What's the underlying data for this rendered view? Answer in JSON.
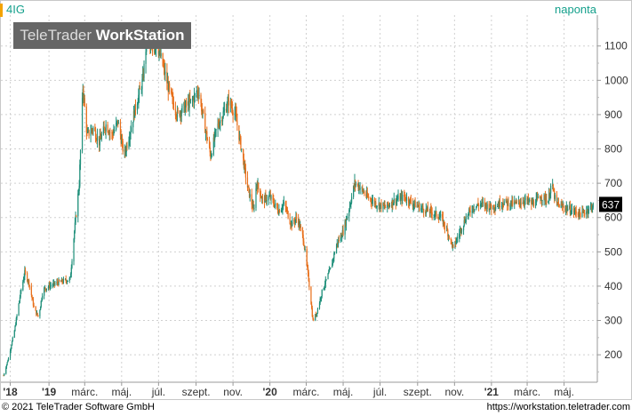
{
  "header": {
    "symbol": "4IG",
    "period": "naponta",
    "watermark_light": "TeleTrader ",
    "watermark_bold": "WorkStation"
  },
  "footer": {
    "copyright": "© 2021 TeleTrader Software GmbH",
    "url": "https://workstation.teletrader.com"
  },
  "colors": {
    "up": "#1f8f7a",
    "down": "#e8701c",
    "accent": "#15a08c",
    "symbol_marker": "#f4a300",
    "grid": "#d0d0d0",
    "last_price_box": "#000000"
  },
  "chart_data": {
    "type": "candlestick",
    "last_price": "637",
    "ylim": [
      120,
      1190
    ],
    "yticks": [
      200,
      300,
      400,
      500,
      600,
      700,
      800,
      900,
      1000,
      1100
    ],
    "xticks": [
      {
        "label": "'18",
        "bold": true,
        "date": "2018-10-29"
      },
      {
        "label": "'19",
        "bold": true,
        "date": "2019-01-01"
      },
      {
        "label": "márc.",
        "bold": false,
        "date": "2019-03-01"
      },
      {
        "label": "máj.",
        "bold": false,
        "date": "2019-05-01"
      },
      {
        "label": "júl.",
        "bold": false,
        "date": "2019-07-01"
      },
      {
        "label": "szept.",
        "bold": false,
        "date": "2019-09-01"
      },
      {
        "label": "nov.",
        "bold": false,
        "date": "2019-11-01"
      },
      {
        "label": "'20",
        "bold": true,
        "date": "2020-01-01"
      },
      {
        "label": "márc.",
        "bold": false,
        "date": "2020-03-01"
      },
      {
        "label": "máj.",
        "bold": false,
        "date": "2020-05-01"
      },
      {
        "label": "júl.",
        "bold": false,
        "date": "2020-07-01"
      },
      {
        "label": "szept.",
        "bold": false,
        "date": "2020-09-01"
      },
      {
        "label": "nov.",
        "bold": false,
        "date": "2020-11-01"
      },
      {
        "label": "'21",
        "bold": true,
        "date": "2021-01-01"
      },
      {
        "label": "márc.",
        "bold": false,
        "date": "2021-03-01"
      },
      {
        "label": "máj.",
        "bold": false,
        "date": "2021-05-01"
      }
    ],
    "grid": true,
    "price_path": [
      [
        "2018-10-18",
        140
      ],
      [
        "2018-10-26",
        190
      ],
      [
        "2018-11-05",
        270
      ],
      [
        "2018-11-15",
        380
      ],
      [
        "2018-11-22",
        440
      ],
      [
        "2018-11-29",
        410
      ],
      [
        "2018-12-08",
        330
      ],
      [
        "2018-12-15",
        310
      ],
      [
        "2018-12-22",
        390
      ],
      [
        "2019-01-01",
        400
      ],
      [
        "2019-01-15",
        410
      ],
      [
        "2019-01-25",
        415
      ],
      [
        "2019-02-05",
        420
      ],
      [
        "2019-02-12",
        560
      ],
      [
        "2019-02-20",
        700
      ],
      [
        "2019-02-26",
        980
      ],
      [
        "2019-03-05",
        840
      ],
      [
        "2019-03-15",
        860
      ],
      [
        "2019-03-25",
        820
      ],
      [
        "2019-04-05",
        870
      ],
      [
        "2019-04-15",
        840
      ],
      [
        "2019-04-25",
        880
      ],
      [
        "2019-05-05",
        780
      ],
      [
        "2019-05-15",
        850
      ],
      [
        "2019-05-25",
        930
      ],
      [
        "2019-06-05",
        1000
      ],
      [
        "2019-06-12",
        1130
      ],
      [
        "2019-06-20",
        1080
      ],
      [
        "2019-06-28",
        1110
      ],
      [
        "2019-07-10",
        1030
      ],
      [
        "2019-07-20",
        960
      ],
      [
        "2019-08-01",
        900
      ],
      [
        "2019-08-12",
        920
      ],
      [
        "2019-08-25",
        940
      ],
      [
        "2019-09-05",
        970
      ],
      [
        "2019-09-15",
        870
      ],
      [
        "2019-09-25",
        780
      ],
      [
        "2019-10-05",
        860
      ],
      [
        "2019-10-15",
        900
      ],
      [
        "2019-10-25",
        940
      ],
      [
        "2019-11-05",
        900
      ],
      [
        "2019-11-15",
        800
      ],
      [
        "2019-11-25",
        690
      ],
      [
        "2019-12-05",
        620
      ],
      [
        "2019-12-10",
        700
      ],
      [
        "2019-12-20",
        650
      ],
      [
        "2020-01-01",
        660
      ],
      [
        "2020-01-15",
        620
      ],
      [
        "2020-01-25",
        640
      ],
      [
        "2020-02-05",
        580
      ],
      [
        "2020-02-15",
        600
      ],
      [
        "2020-02-25",
        540
      ],
      [
        "2020-03-05",
        420
      ],
      [
        "2020-03-12",
        300
      ],
      [
        "2020-03-18",
        320
      ],
      [
        "2020-03-28",
        390
      ],
      [
        "2020-04-10",
        450
      ],
      [
        "2020-04-20",
        520
      ],
      [
        "2020-05-01",
        560
      ],
      [
        "2020-05-10",
        620
      ],
      [
        "2020-05-20",
        700
      ],
      [
        "2020-05-28",
        690
      ],
      [
        "2020-06-10",
        660
      ],
      [
        "2020-06-25",
        640
      ],
      [
        "2020-07-10",
        630
      ],
      [
        "2020-07-25",
        650
      ],
      [
        "2020-08-10",
        660
      ],
      [
        "2020-08-25",
        640
      ],
      [
        "2020-09-10",
        625
      ],
      [
        "2020-09-25",
        615
      ],
      [
        "2020-10-10",
        600
      ],
      [
        "2020-10-20",
        560
      ],
      [
        "2020-10-30",
        510
      ],
      [
        "2020-11-10",
        560
      ],
      [
        "2020-11-20",
        600
      ],
      [
        "2020-12-01",
        630
      ],
      [
        "2020-12-15",
        640
      ],
      [
        "2021-01-01",
        630
      ],
      [
        "2021-01-20",
        645
      ],
      [
        "2021-02-10",
        640
      ],
      [
        "2021-02-25",
        650
      ],
      [
        "2021-03-10",
        640
      ],
      [
        "2021-03-25",
        660
      ],
      [
        "2021-04-05",
        650
      ],
      [
        "2021-04-10",
        700
      ],
      [
        "2021-04-18",
        640
      ],
      [
        "2021-05-01",
        630
      ],
      [
        "2021-05-15",
        620
      ],
      [
        "2021-05-30",
        610
      ],
      [
        "2021-06-10",
        625
      ],
      [
        "2021-06-20",
        637
      ]
    ]
  }
}
